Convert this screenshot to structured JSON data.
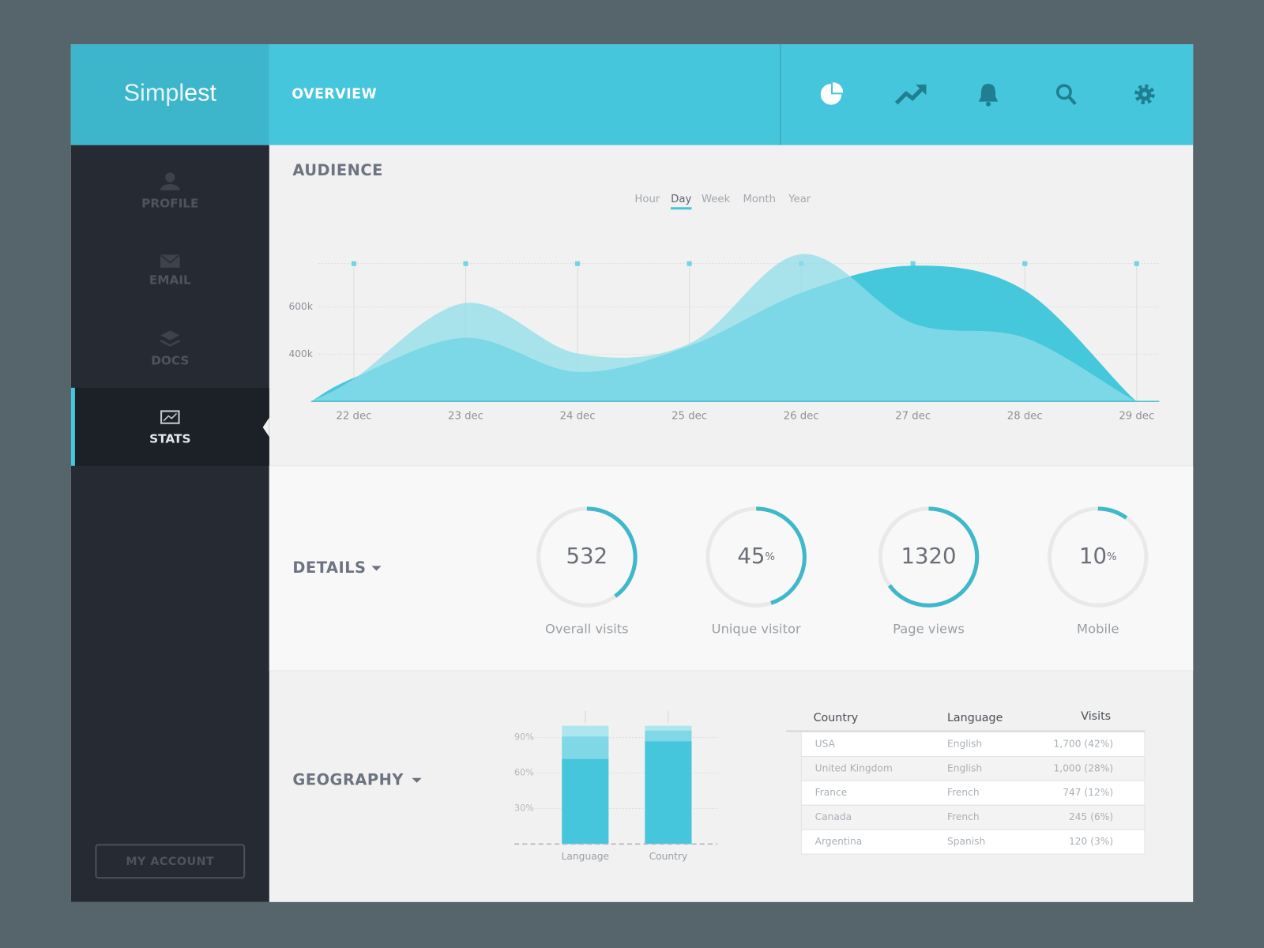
{
  "header": {
    "logo": {
      "light": "Simpl",
      "bold": "est"
    },
    "title": "OVERVIEW"
  },
  "sidebar": {
    "items": [
      "PROFILE",
      "EMAIL",
      "DOCS",
      "STATS"
    ],
    "active": 3,
    "account": "MY ACCOUNT"
  },
  "audience": {
    "title": "AUDIENCE",
    "tabs": [
      "Hour",
      "Day",
      "Week",
      "Month",
      "Year"
    ],
    "active_tab": 1,
    "chart_data": {
      "type": "area",
      "categories": [
        "22 dec",
        "23 dec",
        "24 dec",
        "25 dec",
        "26 dec",
        "27 dec",
        "28 dec",
        "29 dec"
      ],
      "series": [
        {
          "color": "#45c7dc",
          "values": [
            300000,
            470000,
            325000,
            435000,
            660000,
            775000,
            670000,
            200000
          ]
        },
        {
          "color": "#8fdde9",
          "values": [
            296000,
            617000,
            403000,
            445000,
            824000,
            531000,
            470000,
            200000
          ]
        }
      ],
      "ylim": [
        200000,
        900000
      ],
      "yticks": [
        {
          "value": 400000,
          "label": "400k"
        },
        {
          "value": 600000,
          "label": "600k"
        }
      ],
      "grid": true
    }
  },
  "details": {
    "title": "DETAILS",
    "gauges": [
      {
        "value": 532,
        "label": "Overall visits",
        "fill": 40
      },
      {
        "value": 45,
        "unit": "%",
        "label": "Unique visitor",
        "fill": 45
      },
      {
        "value": 1320,
        "label": "Page views",
        "fill": 65
      },
      {
        "value": 10,
        "unit": "%",
        "label": "Mobile",
        "fill": 10
      }
    ]
  },
  "geography": {
    "title": "GEOGRAPHY",
    "chart_data": {
      "type": "stacked-bar",
      "categories": [
        "Language",
        "Country"
      ],
      "series": [
        {
          "color": "#46c6dc",
          "values": [
            72,
            87
          ]
        },
        {
          "color": "#80d8e6",
          "values": [
            19,
            9
          ]
        },
        {
          "color": "#aee6ef",
          "values": [
            9,
            4
          ]
        }
      ],
      "ylim": [
        0,
        100
      ],
      "yticks": [
        {
          "value": 30,
          "label": "30%"
        },
        {
          "value": 60,
          "label": "60%"
        },
        {
          "value": 90,
          "label": "90%"
        }
      ],
      "grid": true
    },
    "table": {
      "header": [
        "Country",
        "Language",
        "Visits"
      ],
      "rows": [
        [
          "USA",
          "English",
          "1,700 (42%)"
        ],
        [
          "United Kingdom",
          "English",
          "1,000 (28%)"
        ],
        [
          "France",
          "French",
          "747 (12%)"
        ],
        [
          "Canada",
          "French",
          "245 (6%)"
        ],
        [
          "Argentina",
          "Spanish",
          "120 (3%)"
        ]
      ]
    }
  }
}
